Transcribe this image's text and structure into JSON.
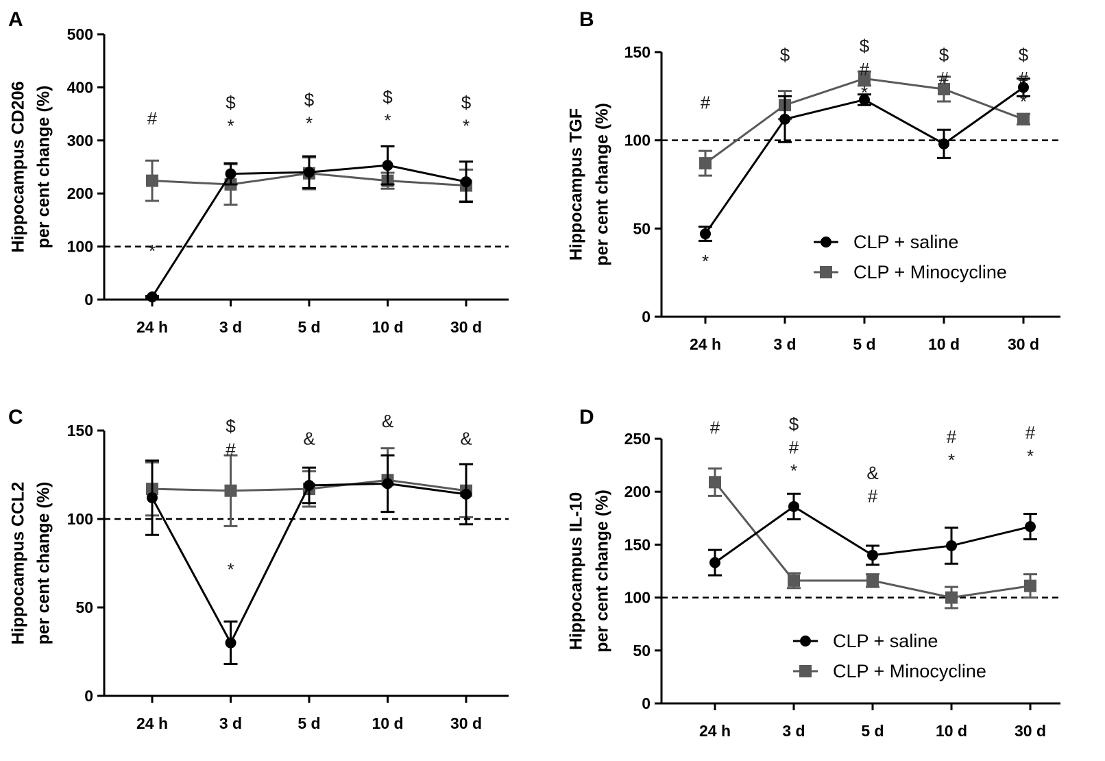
{
  "colors": {
    "saline": "#000000",
    "minocycline": "#595959",
    "axis": "#000000"
  },
  "legend": {
    "series_saline": "CLP + saline",
    "series_minocycline": "CLP + Minocycline"
  },
  "chart_data": [
    {
      "panel": "A",
      "type": "line",
      "ylabel_line1": "Hippocampus CD206",
      "ylabel_line2": "per cent change (%)",
      "categories": [
        "24 h",
        "3 d",
        "5 d",
        "10 d",
        "30 d"
      ],
      "ylim": [
        0,
        500
      ],
      "yticks": [
        0,
        100,
        200,
        300,
        400,
        500
      ],
      "reference_line": 100,
      "legend_shown": false,
      "series": [
        {
          "name": "CLP + saline",
          "marker": "circle",
          "values": [
            5,
            237,
            240,
            253,
            222
          ],
          "errors": [
            2,
            20,
            30,
            36,
            38
          ]
        },
        {
          "name": "CLP + Minocycline",
          "marker": "square",
          "values": [
            224,
            217,
            238,
            224,
            215
          ],
          "errors": [
            38,
            38,
            30,
            15,
            30
          ]
        }
      ],
      "annotations": [
        {
          "category": "24 h",
          "lines": [
            "#"
          ],
          "y": 330
        },
        {
          "category": "24 h",
          "lines": [
            "*"
          ],
          "y": 80
        },
        {
          "category": "3 d",
          "lines": [
            "$",
            "*"
          ],
          "y": 360
        },
        {
          "category": "5 d",
          "lines": [
            "$",
            "*"
          ],
          "y": 365
        },
        {
          "category": "10 d",
          "lines": [
            "$",
            "*"
          ],
          "y": 370
        },
        {
          "category": "30 d",
          "lines": [
            "$",
            "*"
          ],
          "y": 360
        }
      ]
    },
    {
      "panel": "B",
      "type": "line",
      "ylabel_line1": "Hippocampus  TGF",
      "ylabel_line2": "per cent change (%)",
      "categories": [
        "24 h",
        "3 d",
        "5 d",
        "10 d",
        "30 d"
      ],
      "ylim": [
        0,
        150
      ],
      "yticks": [
        0,
        50,
        100,
        150
      ],
      "reference_line": 100,
      "legend_shown": true,
      "series": [
        {
          "name": "CLP + saline",
          "marker": "circle",
          "values": [
            47,
            112,
            123,
            98,
            130
          ],
          "errors": [
            4,
            13,
            3,
            8,
            5
          ]
        },
        {
          "name": "CLP + Minocycline",
          "marker": "square",
          "values": [
            87,
            120,
            135,
            129,
            112
          ],
          "errors": [
            7,
            8,
            4,
            7,
            3
          ]
        }
      ],
      "annotations": [
        {
          "category": "24 h",
          "lines": [
            "#"
          ],
          "y": 118
        },
        {
          "category": "24 h",
          "lines": [
            "*"
          ],
          "y": 28
        },
        {
          "category": "3 d",
          "lines": [
            "$"
          ],
          "y": 145
        },
        {
          "category": "5 d",
          "lines": [
            "$",
            "#",
            "*"
          ],
          "y": 150
        },
        {
          "category": "10 d",
          "lines": [
            "$",
            "#"
          ],
          "y": 145
        },
        {
          "category": "30 d",
          "lines": [
            "$",
            "#",
            "*"
          ],
          "y": 145
        }
      ]
    },
    {
      "panel": "C",
      "type": "line",
      "ylabel_line1": "Hippocampus CCL2",
      "ylabel_line2": "per cent change (%)",
      "categories": [
        "24 h",
        "3 d",
        "5 d",
        "10 d",
        "30 d"
      ],
      "ylim": [
        0,
        150
      ],
      "yticks": [
        0,
        50,
        100,
        150
      ],
      "reference_line": 100,
      "legend_shown": false,
      "series": [
        {
          "name": "CLP + saline",
          "marker": "circle",
          "values": [
            112,
            30,
            119,
            120,
            114
          ],
          "errors": [
            21,
            12,
            10,
            16,
            17
          ]
        },
        {
          "name": "CLP + Minocycline",
          "marker": "square",
          "values": [
            117,
            116,
            117,
            122,
            116
          ],
          "errors": [
            15,
            20,
            10,
            18,
            15
          ]
        }
      ],
      "annotations": [
        {
          "category": "3 d",
          "lines": [
            "$",
            "#"
          ],
          "y": 149
        },
        {
          "category": "3 d",
          "lines": [
            "*"
          ],
          "y": 68
        },
        {
          "category": "5 d",
          "lines": [
            "&"
          ],
          "y": 142
        },
        {
          "category": "10 d",
          "lines": [
            "&"
          ],
          "y": 152
        },
        {
          "category": "30 d",
          "lines": [
            "&"
          ],
          "y": 142
        }
      ]
    },
    {
      "panel": "D",
      "type": "line",
      "ylabel_line1": "Hippocampus IL-10",
      "ylabel_line2": "per cent change (%)",
      "categories": [
        "24 h",
        "3 d",
        "5 d",
        "10 d",
        "30 d"
      ],
      "ylim": [
        0,
        250
      ],
      "yticks": [
        0,
        50,
        100,
        150,
        200,
        250
      ],
      "reference_line": 100,
      "legend_shown": true,
      "series": [
        {
          "name": "CLP + saline",
          "marker": "circle",
          "values": [
            133,
            186,
            140,
            149,
            167
          ],
          "errors": [
            12,
            12,
            9,
            17,
            12
          ]
        },
        {
          "name": "CLP + Minocycline",
          "marker": "square",
          "values": [
            209,
            116,
            116,
            100,
            111
          ],
          "errors": [
            13,
            7,
            6,
            10,
            11
          ]
        }
      ],
      "annotations": [
        {
          "category": "24 h",
          "lines": [
            "#"
          ],
          "y": 255
        },
        {
          "category": "3 d",
          "lines": [
            "$",
            "#",
            "*"
          ],
          "y": 258
        },
        {
          "category": "5 d",
          "lines": [
            "&",
            "#"
          ],
          "y": 212
        },
        {
          "category": "10 d",
          "lines": [
            "#",
            "*"
          ],
          "y": 246
        },
        {
          "category": "30 d",
          "lines": [
            "#",
            "*"
          ],
          "y": 250
        }
      ]
    }
  ]
}
